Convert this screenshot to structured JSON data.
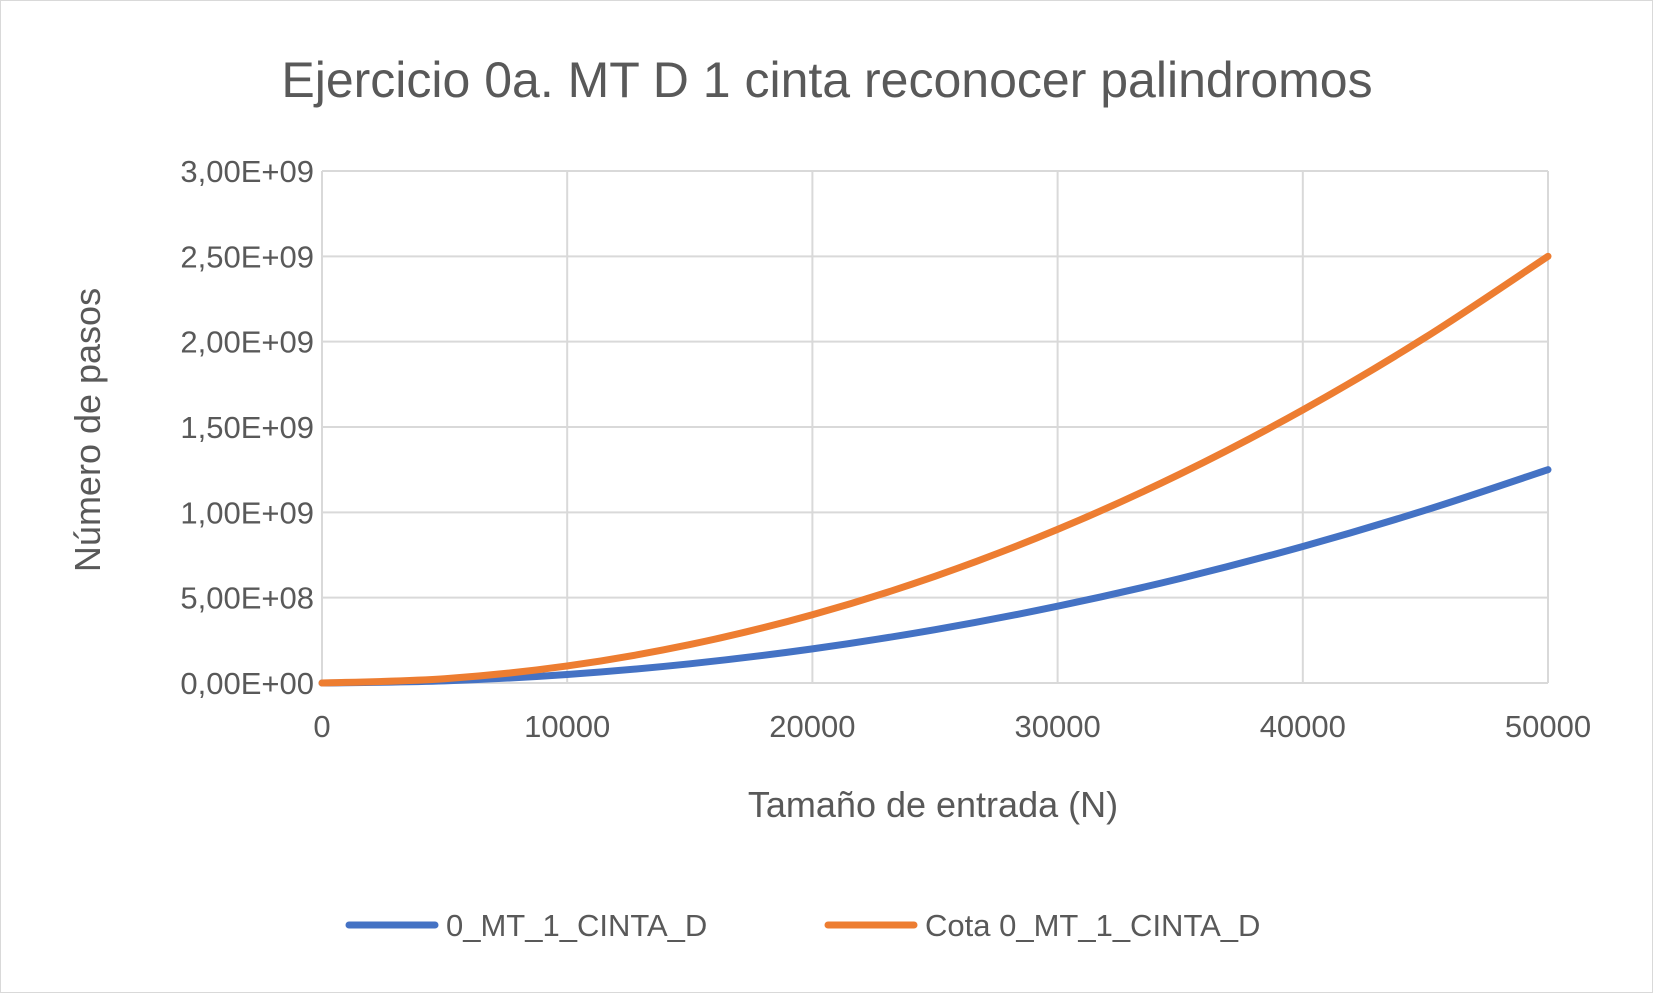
{
  "chart_data": {
    "type": "line",
    "title": "Ejercicio 0a. MT D 1 cinta reconocer palindromos",
    "xlabel": "Tamaño de entrada (N)",
    "ylabel": "Número de pasos",
    "xlim": [
      0,
      50000
    ],
    "ylim": [
      0,
      3000000000
    ],
    "x_ticks": [
      0,
      10000,
      20000,
      30000,
      40000,
      50000
    ],
    "x_tick_labels": [
      "0",
      "10000",
      "20000",
      "30000",
      "40000",
      "50000"
    ],
    "y_ticks": [
      0,
      500000000,
      1000000000,
      1500000000,
      2000000000,
      2500000000,
      3000000000
    ],
    "y_tick_labels": [
      "0,00E+00",
      "5,00E+08",
      "1,00E+09",
      "1,50E+09",
      "2,00E+09",
      "2,50E+09",
      "3,00E+09"
    ],
    "grid": true,
    "legend_position": "bottom",
    "x": [
      0,
      5000,
      10000,
      15000,
      20000,
      25000,
      30000,
      35000,
      40000,
      45000,
      50000
    ],
    "series": [
      {
        "name": "0_MT_1_CINTA_D",
        "color": "#4472c4",
        "values": [
          0,
          12500000,
          50000000,
          112500000,
          200000000,
          312500000,
          450000000,
          612500000,
          800000000,
          1012500000,
          1250000000
        ]
      },
      {
        "name": "Cota 0_MT_1_CINTA_D",
        "color": "#ed7d31",
        "values": [
          0,
          25000000,
          100000000,
          225000000,
          400000000,
          625000000,
          900000000,
          1225000000,
          1600000000,
          2025000000,
          2500000000
        ]
      }
    ]
  }
}
